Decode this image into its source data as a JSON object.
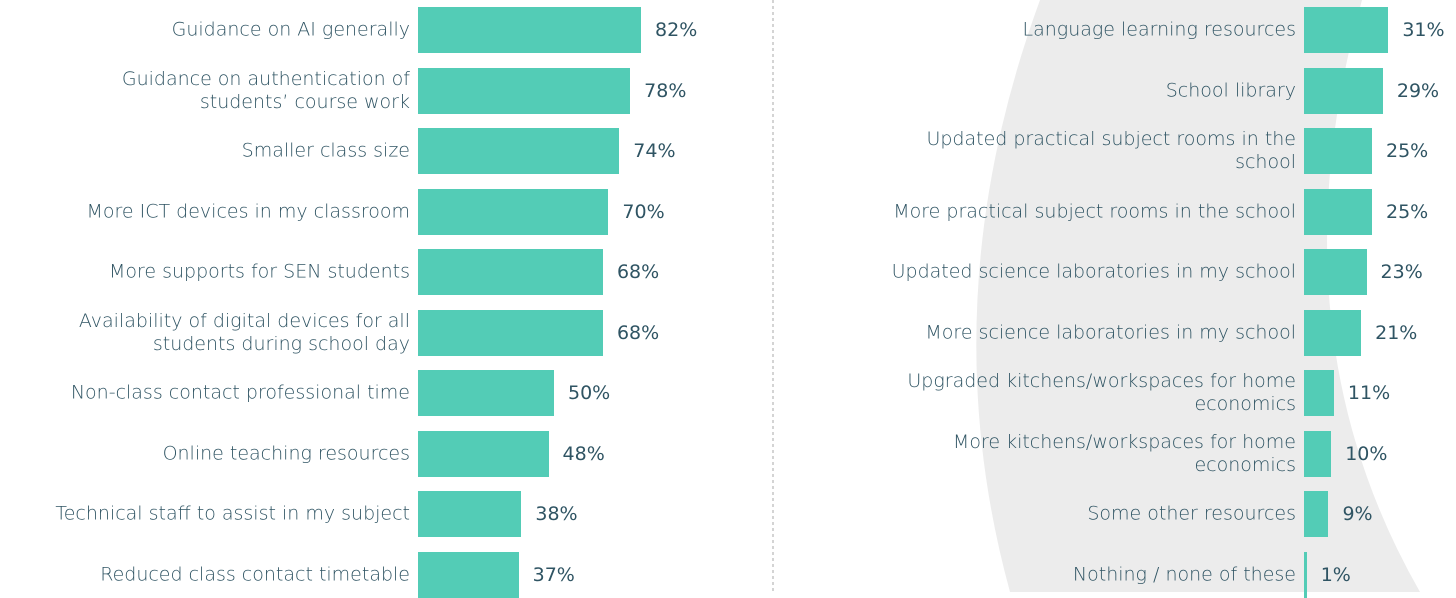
{
  "chart_data": [
    {
      "type": "bar",
      "orientation": "horizontal",
      "color": "#53ccb6",
      "categories": [
        "Guidance on AI generally",
        "Guidance on authentication of\nstudents’ course work",
        "Smaller class size",
        "More ICT devices in my classroom",
        "More supports for SEN students",
        "Availability of digital devices for all\nstudents during school day",
        "Non-class contact professional time",
        "Online teaching resources",
        "Technical staff to assist in my subject",
        "Reduced class contact timetable"
      ],
      "values": [
        82,
        78,
        74,
        70,
        68,
        68,
        50,
        48,
        38,
        37
      ],
      "value_labels": [
        "82%",
        "78%",
        "74%",
        "70%",
        "68%",
        "68%",
        "50%",
        "48%",
        "38%",
        "37%"
      ]
    },
    {
      "type": "bar",
      "orientation": "horizontal",
      "color": "#53ccb6",
      "categories": [
        "Language learning resources",
        "School library",
        "Updated practical subject rooms in the\nschool",
        "More practical subject rooms in the school",
        "Updated science laboratories in my school",
        "More science laboratories in my school",
        "Upgraded kitchens/workspaces for home\neconomics",
        "More kitchens/workspaces for home\neconomics",
        "Some other resources",
        "Nothing / none of these"
      ],
      "values": [
        31,
        29,
        25,
        25,
        23,
        21,
        11,
        10,
        9,
        1
      ],
      "value_labels": [
        "31%",
        "29%",
        "25%",
        "25%",
        "23%",
        "21%",
        "11%",
        "10%",
        "9%",
        "1%"
      ]
    }
  ]
}
